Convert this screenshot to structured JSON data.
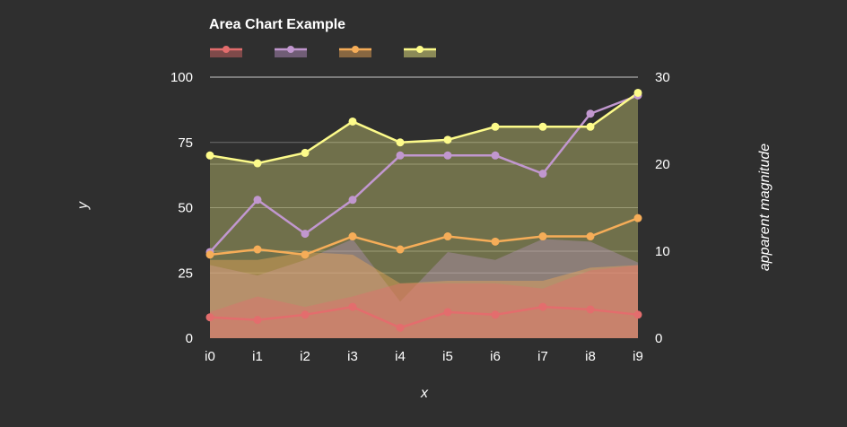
{
  "chart_data": {
    "type": "area",
    "title": "Area Chart Example",
    "xlabel": "x",
    "ylabel": "y",
    "y2label": "apparent magnitude",
    "categories": [
      "i0",
      "i1",
      "i2",
      "i3",
      "i4",
      "i5",
      "i6",
      "i7",
      "i8",
      "i9"
    ],
    "ylim": [
      0,
      100
    ],
    "y2lim": [
      0,
      30
    ],
    "yticks": [
      0,
      25,
      50,
      75,
      100
    ],
    "y2ticks": [
      0,
      10,
      20,
      30
    ],
    "grid": true,
    "legend_position": "top-left",
    "series": [
      {
        "color": "#e36d6d",
        "values": [
          8,
          7,
          9,
          12,
          4,
          10,
          9,
          12,
          11,
          9
        ],
        "band": [
          10,
          16,
          12,
          16,
          21,
          21,
          21,
          19,
          26,
          28
        ]
      },
      {
        "color": "#c197cf",
        "values": [
          33,
          53,
          40,
          53,
          70,
          70,
          70,
          63,
          86,
          93
        ],
        "band": [
          28,
          24,
          30,
          38,
          14,
          33,
          30,
          38,
          37,
          29
        ]
      },
      {
        "color": "#f6ad58",
        "values": [
          32,
          34,
          32,
          39,
          34,
          39,
          37,
          39,
          39,
          46
        ],
        "band": [
          30,
          30,
          33,
          32,
          21,
          22,
          22,
          22,
          27,
          28
        ]
      },
      {
        "color": "#fdfb8a",
        "values": [
          70,
          67,
          71,
          83,
          75,
          76,
          81,
          81,
          81,
          94
        ],
        "band": [
          70,
          67,
          71,
          83,
          75,
          76,
          81,
          81,
          81,
          94
        ]
      }
    ]
  }
}
